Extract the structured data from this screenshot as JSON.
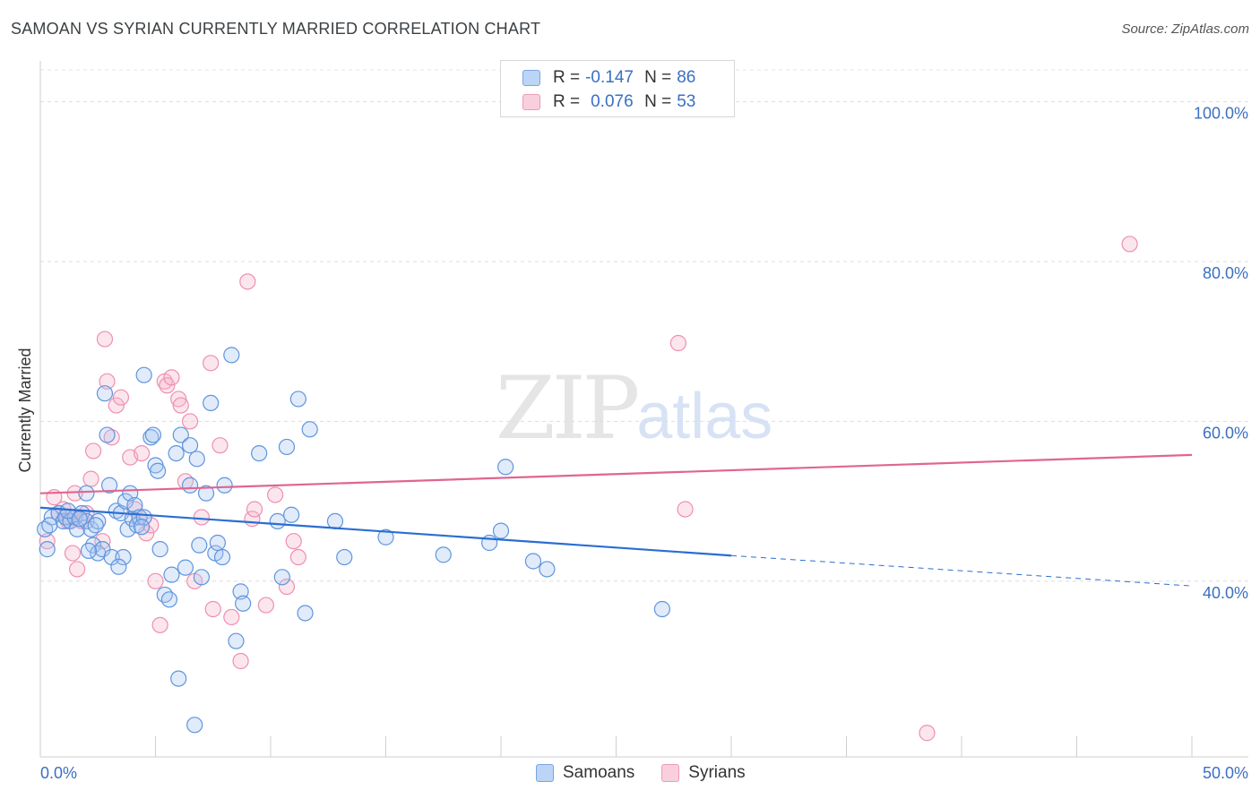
{
  "title": "SAMOAN VS SYRIAN CURRENTLY MARRIED CORRELATION CHART",
  "source": "Source: ZipAtlas.com",
  "watermark": {
    "zip": "ZIP",
    "atlas": "atlas"
  },
  "legend": {
    "samoans": {
      "r_label": "R =",
      "r": "-0.147",
      "n_label": "N =",
      "n": "86"
    },
    "syrians": {
      "r_label": "R =",
      "r": "0.076",
      "n_label": "N =",
      "n": "53"
    }
  },
  "chart_data": {
    "type": "scatter",
    "title": "SAMOAN VS SYRIAN CURRENTLY MARRIED CORRELATION CHART",
    "xlabel": "",
    "ylabel": "Currently Married",
    "xlim": [
      0,
      50
    ],
    "ylim": [
      18,
      104
    ],
    "x_tick_labels": [
      "0.0%",
      "50.0%"
    ],
    "y_ticks": [
      40,
      60,
      80,
      100
    ],
    "y_tick_labels": [
      "40.0%",
      "60.0%",
      "80.0%",
      "100.0%"
    ],
    "grid": true,
    "colors": {
      "samoans": "#6a9fe0",
      "syrians": "#f08aac",
      "samoans_line": "#2a6ed1",
      "syrians_line": "#e06591"
    },
    "series": [
      {
        "name": "Samoans",
        "trend": {
          "x0": 0,
          "y0": 49.2,
          "x1": 30,
          "y1": 43.2,
          "dash_x1": 50,
          "dash_y1": 39.4
        },
        "points": [
          [
            0.2,
            46.5
          ],
          [
            0.5,
            48.0
          ],
          [
            0.8,
            48.5
          ],
          [
            1.0,
            47.5
          ],
          [
            1.1,
            48.0
          ],
          [
            1.3,
            47.5
          ],
          [
            1.5,
            48.0
          ],
          [
            1.6,
            46.5
          ],
          [
            1.8,
            48.5
          ],
          [
            2.0,
            47.5
          ],
          [
            2.2,
            46.5
          ],
          [
            2.0,
            51.0
          ],
          [
            2.3,
            44.5
          ],
          [
            2.5,
            43.5
          ],
          [
            2.5,
            47.5
          ],
          [
            2.7,
            44.0
          ],
          [
            2.8,
            63.5
          ],
          [
            2.9,
            58.3
          ],
          [
            3.0,
            52.0
          ],
          [
            3.1,
            43.0
          ],
          [
            3.3,
            48.8
          ],
          [
            3.5,
            48.5
          ],
          [
            3.6,
            43.0
          ],
          [
            3.7,
            50.0
          ],
          [
            3.8,
            46.5
          ],
          [
            3.9,
            51.0
          ],
          [
            4.0,
            47.8
          ],
          [
            4.1,
            49.5
          ],
          [
            4.2,
            47.0
          ],
          [
            4.3,
            48.0
          ],
          [
            4.5,
            65.8
          ],
          [
            4.5,
            48.0
          ],
          [
            4.8,
            58.0
          ],
          [
            4.9,
            58.3
          ],
          [
            5.0,
            54.5
          ],
          [
            5.1,
            53.8
          ],
          [
            5.2,
            44.0
          ],
          [
            5.4,
            38.3
          ],
          [
            5.6,
            37.7
          ],
          [
            5.9,
            56.0
          ],
          [
            6.0,
            27.8
          ],
          [
            6.1,
            58.3
          ],
          [
            6.5,
            57.0
          ],
          [
            6.5,
            52.0
          ],
          [
            6.8,
            55.3
          ],
          [
            6.9,
            44.5
          ],
          [
            7.0,
            40.5
          ],
          [
            7.2,
            51.0
          ],
          [
            7.4,
            62.3
          ],
          [
            7.6,
            43.5
          ],
          [
            7.7,
            44.8
          ],
          [
            7.9,
            43.0
          ],
          [
            8.0,
            52.0
          ],
          [
            8.3,
            68.3
          ],
          [
            8.5,
            32.5
          ],
          [
            8.7,
            38.7
          ],
          [
            8.8,
            37.2
          ],
          [
            9.5,
            56.0
          ],
          [
            10.3,
            47.5
          ],
          [
            10.5,
            40.5
          ],
          [
            10.7,
            56.8
          ],
          [
            10.9,
            48.3
          ],
          [
            11.2,
            62.8
          ],
          [
            11.5,
            36.0
          ],
          [
            11.7,
            59.0
          ],
          [
            12.8,
            47.5
          ],
          [
            13.2,
            43.0
          ],
          [
            15.0,
            45.5
          ],
          [
            17.5,
            43.3
          ],
          [
            19.5,
            44.8
          ],
          [
            20.0,
            46.3
          ],
          [
            20.2,
            54.3
          ],
          [
            21.4,
            42.5
          ],
          [
            22.0,
            41.5
          ],
          [
            27.0,
            36.5
          ],
          [
            6.7,
            22.0
          ],
          [
            0.3,
            44.0
          ],
          [
            0.4,
            47.0
          ],
          [
            1.2,
            48.8
          ],
          [
            1.7,
            47.8
          ],
          [
            2.1,
            43.8
          ],
          [
            2.4,
            47.0
          ],
          [
            3.4,
            41.8
          ],
          [
            4.4,
            46.8
          ],
          [
            5.7,
            40.8
          ],
          [
            6.3,
            41.7
          ]
        ]
      },
      {
        "name": "Syrians",
        "trend": {
          "x0": 0,
          "y0": 51.0,
          "x1": 50,
          "y1": 55.8
        },
        "points": [
          [
            0.3,
            45.0
          ],
          [
            0.6,
            50.5
          ],
          [
            0.8,
            48.5
          ],
          [
            1.0,
            49.0
          ],
          [
            1.2,
            47.5
          ],
          [
            1.3,
            48.0
          ],
          [
            1.5,
            51.0
          ],
          [
            1.6,
            41.5
          ],
          [
            1.8,
            47.5
          ],
          [
            2.0,
            48.5
          ],
          [
            2.2,
            52.8
          ],
          [
            2.3,
            56.3
          ],
          [
            2.7,
            45.0
          ],
          [
            2.8,
            70.3
          ],
          [
            2.9,
            65.0
          ],
          [
            3.1,
            58.0
          ],
          [
            3.3,
            62.0
          ],
          [
            3.5,
            63.0
          ],
          [
            3.9,
            55.5
          ],
          [
            4.1,
            49.0
          ],
          [
            4.3,
            48.0
          ],
          [
            4.4,
            56.0
          ],
          [
            4.6,
            46.0
          ],
          [
            4.8,
            47.0
          ],
          [
            5.0,
            40.0
          ],
          [
            5.2,
            34.5
          ],
          [
            5.4,
            65.0
          ],
          [
            5.5,
            64.5
          ],
          [
            5.7,
            65.5
          ],
          [
            6.0,
            62.8
          ],
          [
            6.3,
            52.5
          ],
          [
            6.5,
            60.0
          ],
          [
            6.7,
            40.0
          ],
          [
            7.0,
            48.0
          ],
          [
            7.4,
            67.3
          ],
          [
            7.5,
            36.5
          ],
          [
            7.8,
            57.0
          ],
          [
            8.3,
            35.5
          ],
          [
            8.7,
            30.0
          ],
          [
            9.0,
            77.5
          ],
          [
            9.2,
            47.8
          ],
          [
            9.3,
            49.0
          ],
          [
            9.8,
            37.0
          ],
          [
            10.2,
            50.8
          ],
          [
            10.7,
            39.3
          ],
          [
            11.0,
            45.0
          ],
          [
            11.2,
            43.0
          ],
          [
            27.7,
            69.8
          ],
          [
            28.0,
            49.0
          ],
          [
            47.3,
            82.2
          ],
          [
            38.5,
            21.0
          ],
          [
            1.4,
            43.5
          ],
          [
            6.1,
            62.0
          ]
        ]
      }
    ]
  }
}
